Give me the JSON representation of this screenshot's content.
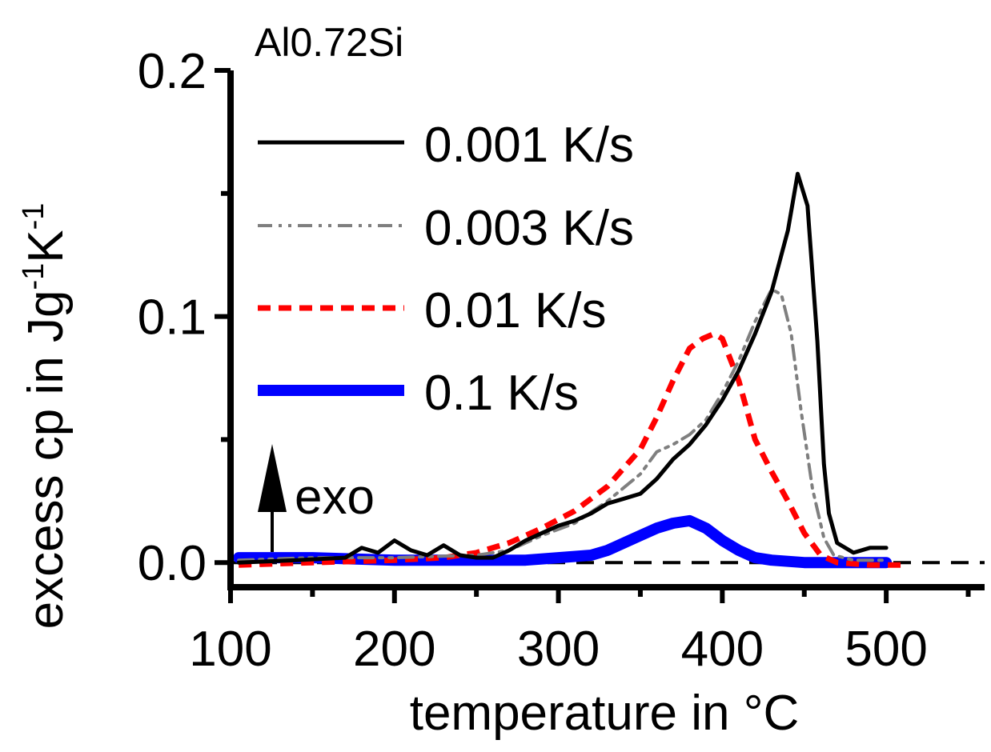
{
  "chart_data": {
    "type": "line",
    "title": "Al0.72Si",
    "xlabel": "temperature in °C",
    "ylabel": "excess cp in Jg",
    "ylabel_sup1": "-1",
    "ylabel_mid": "K",
    "ylabel_sup2": "-1",
    "xlim": [
      100,
      560
    ],
    "ylim": [
      -0.01,
      0.2
    ],
    "xticks": [
      100,
      200,
      300,
      400,
      500
    ],
    "xtick_labels": [
      "100",
      "200",
      "300",
      "400",
      "500"
    ],
    "yticks": [
      0.0,
      0.1,
      0.2
    ],
    "ytick_labels": [
      "0.0",
      "0.1",
      "0.2"
    ],
    "annotation": "exo",
    "legend_position": "top-left",
    "baseline_y": 0.0,
    "series": [
      {
        "name": "0.001 K/s",
        "color": "#000000",
        "style": "solid",
        "x": [
          105,
          140,
          170,
          180,
          190,
          200,
          210,
          220,
          230,
          240,
          250,
          260,
          270,
          280,
          290,
          300,
          310,
          320,
          330,
          340,
          350,
          360,
          370,
          380,
          390,
          400,
          410,
          420,
          430,
          440,
          446,
          452,
          458,
          462,
          465,
          470,
          480,
          490,
          500
        ],
        "y": [
          0.0,
          0.001,
          0.002,
          0.006,
          0.004,
          0.009,
          0.005,
          0.003,
          0.007,
          0.003,
          0.002,
          0.002,
          0.005,
          0.009,
          0.012,
          0.015,
          0.017,
          0.02,
          0.024,
          0.026,
          0.028,
          0.034,
          0.042,
          0.048,
          0.056,
          0.066,
          0.078,
          0.093,
          0.11,
          0.135,
          0.158,
          0.145,
          0.09,
          0.04,
          0.02,
          0.008,
          0.004,
          0.006,
          0.006
        ]
      },
      {
        "name": "0.003 K/s",
        "color": "#7f7f7f",
        "style": "dash-dot-dot",
        "x": [
          105,
          150,
          200,
          250,
          270,
          290,
          310,
          330,
          350,
          360,
          370,
          380,
          390,
          400,
          410,
          420,
          430,
          436,
          442,
          448,
          455,
          462,
          468,
          480,
          500
        ],
        "y": [
          0.001,
          0.002,
          0.002,
          0.003,
          0.005,
          0.011,
          0.016,
          0.025,
          0.036,
          0.045,
          0.048,
          0.052,
          0.058,
          0.069,
          0.082,
          0.098,
          0.111,
          0.109,
          0.093,
          0.062,
          0.03,
          0.01,
          0.003,
          0.001,
          0.001
        ]
      },
      {
        "name": "0.01 K/s",
        "color": "#ff0000",
        "style": "dashed",
        "x": [
          105,
          150,
          200,
          230,
          250,
          270,
          290,
          310,
          330,
          350,
          360,
          370,
          380,
          388,
          395,
          400,
          410,
          420,
          430,
          440,
          450,
          460,
          470,
          490,
          510
        ],
        "y": [
          -0.001,
          0.0,
          0.001,
          0.002,
          0.004,
          0.008,
          0.014,
          0.021,
          0.031,
          0.046,
          0.059,
          0.074,
          0.087,
          0.091,
          0.093,
          0.091,
          0.074,
          0.05,
          0.037,
          0.025,
          0.012,
          0.003,
          0.0,
          -0.001,
          -0.001
        ]
      },
      {
        "name": "0.1 K/s",
        "color": "#0000ff",
        "style": "solid-thick",
        "x": [
          105,
          150,
          200,
          250,
          280,
          300,
          320,
          330,
          340,
          350,
          360,
          370,
          380,
          390,
          400,
          410,
          420,
          430,
          450,
          470,
          500
        ],
        "y": [
          0.002,
          0.002,
          0.001,
          0.001,
          0.001,
          0.002,
          0.003,
          0.005,
          0.008,
          0.011,
          0.014,
          0.016,
          0.017,
          0.014,
          0.009,
          0.005,
          0.002,
          0.001,
          0.0,
          0.0,
          0.0
        ]
      }
    ]
  }
}
